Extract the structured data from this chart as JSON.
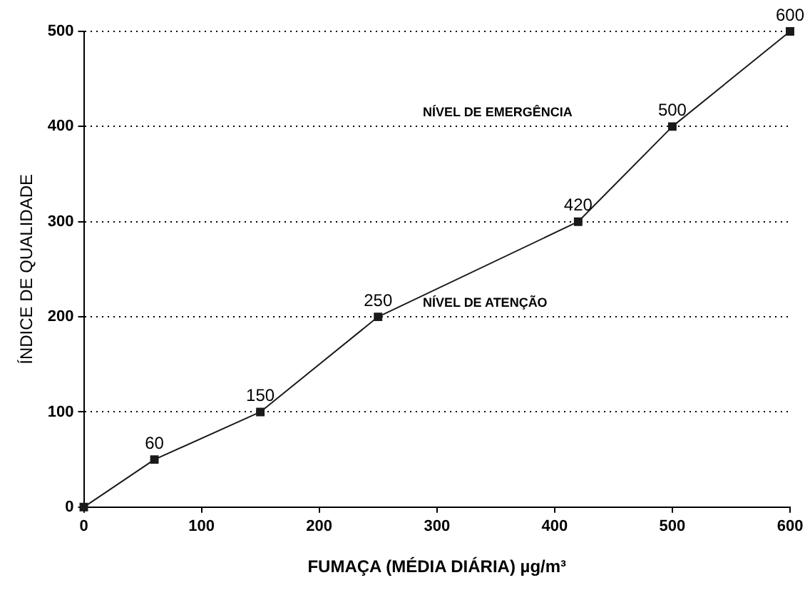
{
  "chart_data": {
    "type": "line",
    "xlabel": "FUMAÇA (MÉDIA DIÁRIA) µg/m³",
    "ylabel": "ÍNDICE DE QUALIDADE",
    "x": [
      0,
      60,
      150,
      250,
      420,
      500,
      600
    ],
    "series": [
      {
        "color": "#1a1a1a",
        "values": [
          0,
          50,
          100,
          200,
          300,
          400,
          500
        ]
      }
    ],
    "xlim": [
      0,
      600
    ],
    "xticks": [
      0,
      100,
      200,
      300,
      400,
      500,
      600
    ],
    "ylim": [
      0,
      500
    ],
    "yticks": [
      0,
      100,
      200,
      300,
      400,
      500
    ],
    "grid": "y",
    "marker": "square",
    "line_style": "solid",
    "annotations": [
      "NÍVEL DE EMERGÊNCIA",
      "NÍVEL DE ATENÇÃO",
      {
        "text": "60",
        "x": 60,
        "y": 50
      },
      {
        "text": "150",
        "x": 150,
        "y": 100
      },
      {
        "text": "250",
        "x": 250,
        "y": 200
      },
      {
        "text": "420",
        "x": 420,
        "y": 300
      },
      {
        "text": "500",
        "x": 500,
        "y": 400
      },
      {
        "text": "600",
        "x": 600,
        "y": 500
      }
    ]
  }
}
